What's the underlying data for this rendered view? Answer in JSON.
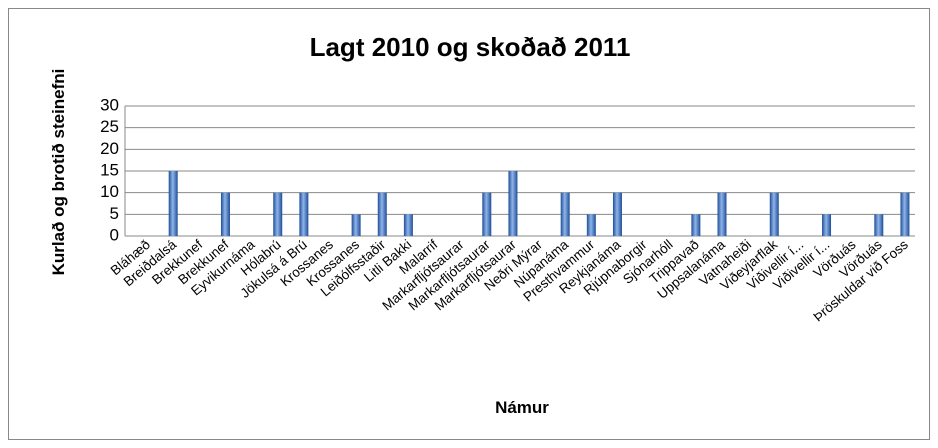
{
  "chart_data": {
    "type": "bar",
    "title": "Lagt 2010 og skoðað 2011",
    "x_label": "Námur",
    "y_label": "Kurlað og brotið steinefni",
    "categories": [
      "Bláhæð",
      "Breiðdalsá",
      "Brekkunef",
      "Brekkunef",
      "Eyvikurnáma",
      "Hólabrú",
      "Jökulsá á Brú",
      "Krossanes",
      "Krossanes",
      "Leiðólfsstaðir",
      "Litli Bakki",
      "Malarrif",
      "Markarfljótsaurar",
      "Markarfljótsaurar",
      "Markarfljótsaurar",
      "Neðri Mýrar",
      "Núpanáma",
      "Presthvammur",
      "Reykjanáma",
      "Rjúpnaborgir",
      "Sjónarhóll",
      "Trippavað",
      "Uppsalanáma",
      "Vatnaheiði",
      "Viðeyjarflak",
      "Viðivellir í...",
      "Viðivellir í...",
      "Vörðuás",
      "Vörðuás",
      "Þröskuldar við Foss"
    ],
    "values": [
      0,
      15,
      0,
      10,
      0,
      10,
      10,
      0,
      5,
      10,
      5,
      0,
      0,
      10,
      15,
      0,
      10,
      5,
      10,
      0,
      0,
      5,
      10,
      0,
      10,
      0,
      5,
      0,
      5,
      10
    ],
    "color": "#3a6fc0",
    "ylim": [
      0,
      30
    ],
    "yticks": [
      0,
      5,
      10,
      15,
      20,
      25,
      30
    ],
    "grid": true
  }
}
